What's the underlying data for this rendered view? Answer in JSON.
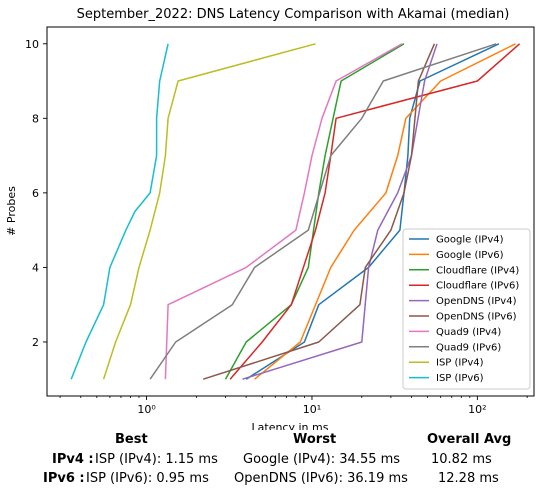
{
  "chart_data": {
    "type": "line",
    "title": "September_2022: DNS Latency Comparison with Akamai (median)",
    "xlabel": "Latency in ms",
    "ylabel": "# Probes",
    "xscale": "log",
    "xlim": [
      0.25,
      220
    ],
    "ylim": [
      0.55,
      10.45
    ],
    "xticks": [
      1,
      10,
      100
    ],
    "xtick_labels": [
      "10⁰",
      "10¹",
      "10²"
    ],
    "yticks": [
      2,
      4,
      6,
      8,
      10
    ],
    "ytick_labels": [
      "2",
      "4",
      "6",
      "8",
      "10"
    ],
    "grid": false,
    "legend_position": "lower-right",
    "series": [
      {
        "name": "Google (IPv4)",
        "color": "#1f77b4",
        "points": [
          [
            4,
            1
          ],
          [
            9,
            2
          ],
          [
            11,
            3
          ],
          [
            22,
            4
          ],
          [
            34,
            5
          ],
          [
            36,
            6
          ],
          [
            38,
            7
          ],
          [
            39,
            8
          ],
          [
            45,
            9
          ],
          [
            135,
            10
          ]
        ]
      },
      {
        "name": "Google (IPv6)",
        "color": "#ff7f0e",
        "points": [
          [
            4.5,
            1
          ],
          [
            8.5,
            2
          ],
          [
            13,
            4
          ],
          [
            18,
            5
          ],
          [
            28,
            6
          ],
          [
            33,
            7
          ],
          [
            37,
            8
          ],
          [
            60,
            9
          ],
          [
            170,
            10
          ]
        ]
      },
      {
        "name": "Cloudflare (IPv4)",
        "color": "#2ca02c",
        "points": [
          [
            3,
            1
          ],
          [
            4,
            2
          ],
          [
            7.5,
            3
          ],
          [
            9.5,
            4
          ],
          [
            11,
            6
          ],
          [
            12,
            7
          ],
          [
            15,
            9
          ],
          [
            36,
            10
          ]
        ]
      },
      {
        "name": "Cloudflare (IPv6)",
        "color": "#d62728",
        "points": [
          [
            3.2,
            1
          ],
          [
            5,
            2
          ],
          [
            7.5,
            3
          ],
          [
            10.5,
            5
          ],
          [
            12,
            6
          ],
          [
            13,
            7
          ],
          [
            14,
            8
          ],
          [
            100,
            9
          ],
          [
            180,
            10
          ]
        ]
      },
      {
        "name": "OpenDNS (IPv4)",
        "color": "#9467bd",
        "points": [
          [
            3.8,
            1
          ],
          [
            20,
            2
          ],
          [
            22,
            4
          ],
          [
            25,
            5
          ],
          [
            33,
            6
          ],
          [
            40,
            7
          ],
          [
            48,
            9
          ],
          [
            57,
            10
          ]
        ]
      },
      {
        "name": "OpenDNS (IPv6)",
        "color": "#8c564b",
        "points": [
          [
            2.2,
            1
          ],
          [
            11,
            2
          ],
          [
            19.5,
            3
          ],
          [
            21,
            4
          ],
          [
            30,
            5
          ],
          [
            36,
            6
          ],
          [
            40,
            7
          ],
          [
            44,
            9
          ],
          [
            55,
            10
          ]
        ]
      },
      {
        "name": "Quad9 (IPv4)",
        "color": "#e377c2",
        "points": [
          [
            1.3,
            1
          ],
          [
            1.35,
            3
          ],
          [
            4,
            4
          ],
          [
            8,
            5
          ],
          [
            9,
            6
          ],
          [
            10,
            7
          ],
          [
            11.5,
            8
          ],
          [
            14,
            9
          ],
          [
            35,
            10
          ]
        ]
      },
      {
        "name": "Quad9 (IPv6)",
        "color": "#7f7f7f",
        "points": [
          [
            1.05,
            1
          ],
          [
            1.5,
            2
          ],
          [
            3.3,
            3
          ],
          [
            4.5,
            4
          ],
          [
            9.5,
            5
          ],
          [
            13,
            7
          ],
          [
            20,
            8
          ],
          [
            27,
            9
          ],
          [
            130,
            10
          ]
        ]
      },
      {
        "name": "ISP (IPv4)",
        "color": "#bcbd22",
        "points": [
          [
            0.55,
            1
          ],
          [
            0.65,
            2
          ],
          [
            0.8,
            3
          ],
          [
            0.9,
            4
          ],
          [
            1.05,
            5
          ],
          [
            1.2,
            6
          ],
          [
            1.3,
            7
          ],
          [
            1.35,
            8
          ],
          [
            1.55,
            9
          ],
          [
            10.5,
            10
          ]
        ]
      },
      {
        "name": "ISP (IPv6)",
        "color": "#17becf",
        "points": [
          [
            0.35,
            1
          ],
          [
            0.43,
            2
          ],
          [
            0.55,
            3
          ],
          [
            0.6,
            4
          ],
          [
            0.75,
            5
          ],
          [
            0.85,
            5.5
          ],
          [
            1.05,
            6
          ],
          [
            1.15,
            7
          ],
          [
            1.15,
            8
          ],
          [
            1.2,
            9
          ],
          [
            1.35,
            10
          ]
        ]
      }
    ]
  },
  "summary": {
    "headers": {
      "best": "Best",
      "worst": "Worst",
      "avg": "Overall Avg"
    },
    "rows": [
      {
        "label": "IPv4 :",
        "best": "ISP (IPv4): 1.15 ms",
        "worst": "Google (IPv4): 34.55 ms",
        "avg": "10.82 ms"
      },
      {
        "label": "IPv6 :",
        "best": "ISP (IPv6): 0.95 ms",
        "worst": "OpenDNS (IPv6): 36.19 ms",
        "avg": "12.28 ms"
      }
    ]
  }
}
